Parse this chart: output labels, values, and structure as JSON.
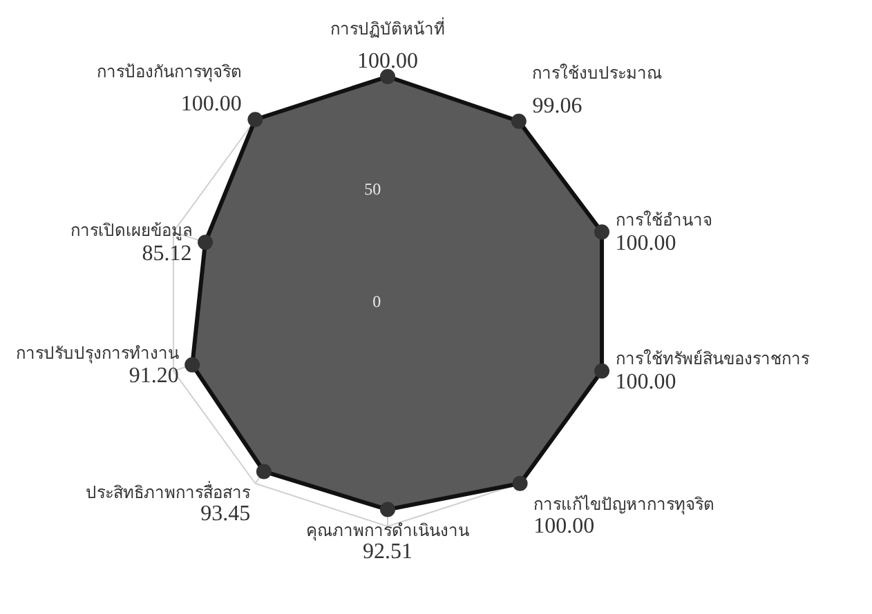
{
  "chart_data": {
    "type": "radar",
    "categories": [
      "การปฏิบัติหน้าที่",
      "การใช้งบประมาณ",
      "การใช้อำนาจ",
      "การใช้ทรัพย์สินของราชการ",
      "การแก้ไขปัญหาการทุจริต",
      "คุณภาพการดำเนินงาน",
      "ประสิทธิภาพการสื่อสาร",
      "การปรับปรุงการทำงาน",
      "การเปิดเผยข้อมูล",
      "การป้องกันการทุจริต"
    ],
    "series": [
      {
        "color": "#5a5a5a",
        "values": [
          100.0,
          99.06,
          100.0,
          100.0,
          100.0,
          92.51,
          93.45,
          91.2,
          85.12,
          100.0
        ]
      }
    ],
    "ylim": [
      0,
      100
    ],
    "yticks": [
      0,
      50
    ],
    "grid": true,
    "marker": "circle",
    "value_labels": [
      "100.00",
      "99.06",
      "100.00",
      "100.00",
      "100.00",
      "92.51",
      "93.45",
      "91.20",
      "85.12",
      "100.00"
    ]
  }
}
